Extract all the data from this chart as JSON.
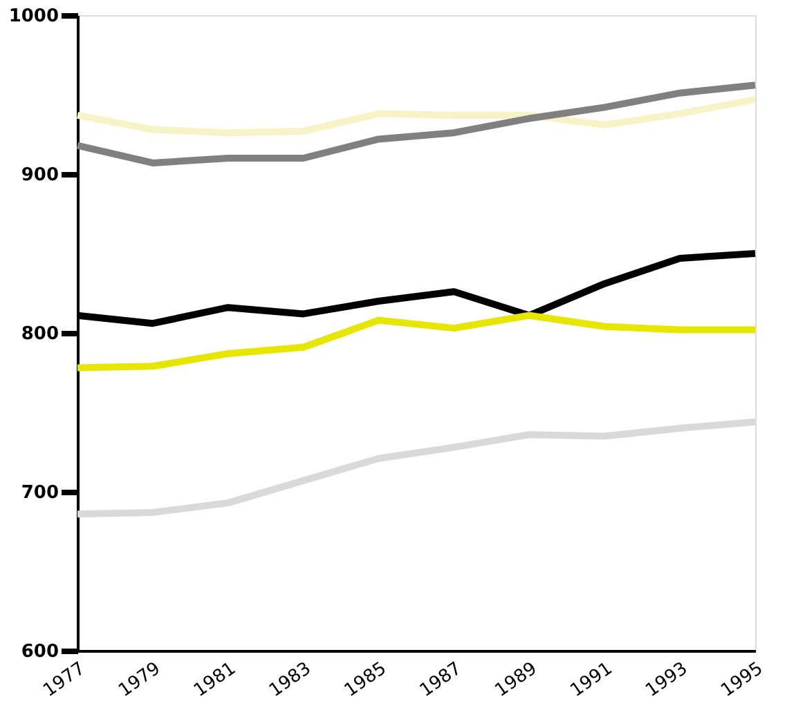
{
  "chart_data": {
    "type": "line",
    "x": [
      1977,
      1979,
      1981,
      1983,
      1985,
      1987,
      1989,
      1991,
      1993,
      1995
    ],
    "xlim": [
      1977,
      1995
    ],
    "xticks": [
      1977,
      1979,
      1981,
      1983,
      1985,
      1987,
      1989,
      1991,
      1993,
      1995
    ],
    "ylim": [
      600,
      1000
    ],
    "yticks": [
      600,
      700,
      800,
      900,
      1000
    ],
    "grid": false,
    "marker": "none",
    "line_style": "solid",
    "series": [
      {
        "color": "#f7f3c6",
        "values": [
          937,
          928,
          926,
          927,
          938,
          937,
          937,
          931,
          938,
          947
        ]
      },
      {
        "color": "#808080",
        "values": [
          918,
          907,
          910,
          910,
          922,
          926,
          935,
          942,
          951,
          956
        ]
      },
      {
        "color": "#000000",
        "values": [
          811,
          806,
          816,
          812,
          820,
          826,
          811,
          831,
          847,
          850
        ]
      },
      {
        "color": "#e6e600",
        "values": [
          778,
          779,
          787,
          791,
          808,
          803,
          811,
          804,
          802,
          802
        ]
      },
      {
        "color": "#d9d9d9",
        "values": [
          686,
          687,
          693,
          707,
          721,
          728,
          736,
          735,
          740,
          744
        ]
      }
    ]
  }
}
